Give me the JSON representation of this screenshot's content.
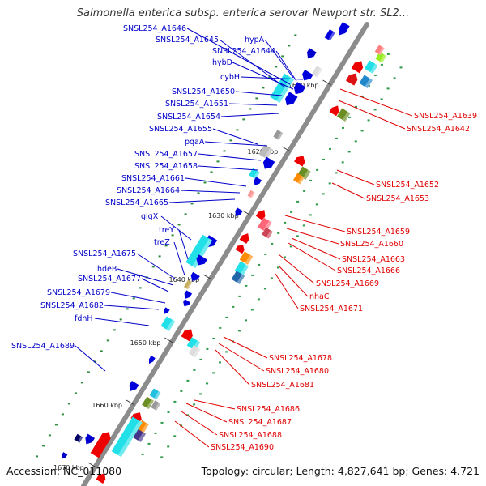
{
  "title": "Salmonella enterica subsp. enterica serovar Newport str. SL2...",
  "footer": {
    "accession": "Accession: NC_011080",
    "summary": "Topology: circular; Length: 4,827,641 bp; Genes: 4,721"
  },
  "colors": {
    "backbone": "#8c8c8c",
    "left_labels": "#0000c8",
    "right_labels": "#e00000",
    "gene_blue": "#0000dd",
    "gene_red": "#ee0000",
    "gene_cyan": "#22e0e8"
  },
  "ticks": [
    {
      "label": "1610 kbp"
    },
    {
      "label": "1620 kbp"
    },
    {
      "label": "1630 kbp"
    },
    {
      "label": "1640 kbp"
    },
    {
      "label": "1650 kbp"
    },
    {
      "label": "1660 kbp"
    },
    {
      "label": "1670 kbp"
    }
  ],
  "left_labels": [
    "SNSL254_A1646",
    "SNSL254_A1645",
    "hypA",
    "SNSL254_A1644",
    "hybD",
    "cybH",
    "SNSL254_A1650",
    "SNSL254_A1651",
    "SNSL254_A1654",
    "SNSL254_A1655",
    "pqaA",
    "SNSL254_A1657",
    "SNSL254_A1658",
    "SNSL254_A1661",
    "SNSL254_A1664",
    "SNSL254_A1665",
    "glgX",
    "treY",
    "treZ",
    "SNSL254_A1675",
    "hdeB",
    "SNSL254_A1677",
    "SNSL254_A1679",
    "SNSL254_A1682",
    "fdnH",
    "SNSL254_A1689"
  ],
  "right_labels": [
    "SNSL254_A1639",
    "SNSL254_A1642",
    "SNSL254_A1652",
    "SNSL254_A1653",
    "SNSL254_A1659",
    "SNSL254_A1660",
    "SNSL254_A1663",
    "SNSL254_A1666",
    "SNSL254_A1669",
    "nhaC",
    "SNSL254_A1671",
    "SNSL254_A1678",
    "SNSL254_A1680",
    "SNSL254_A1681",
    "SNSL254_A1686",
    "SNSL254_A1687",
    "SNSL254_A1688",
    "SNSL254_A1690"
  ]
}
